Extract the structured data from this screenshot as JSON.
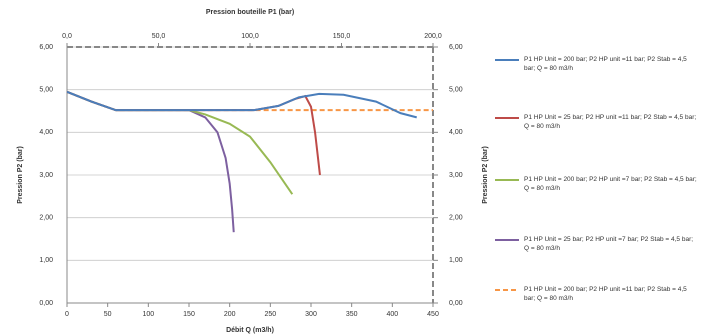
{
  "chart_data": {
    "type": "line",
    "xlabel": "Débit Q (m3/h)",
    "x2label": "Pression bouteille P1 (bar)",
    "ylabel": "Pression P2 (bar)",
    "y2label": "Pression P2 (bar)",
    "xlim": [
      0,
      450
    ],
    "xticks": [
      0,
      50,
      100,
      150,
      200,
      250,
      300,
      350,
      400,
      450
    ],
    "x2lim": [
      0,
      200
    ],
    "x2ticks": [
      {
        "value": 0,
        "label": "0,0"
      },
      {
        "value": 50,
        "label": "50,0"
      },
      {
        "value": 100,
        "label": "100,0"
      },
      {
        "value": 150,
        "label": "150,0"
      },
      {
        "value": 200,
        "label": "200,0"
      }
    ],
    "ylim": [
      0,
      6
    ],
    "yticks": [
      {
        "value": 0,
        "label": "0,00"
      },
      {
        "value": 1,
        "label": "1,00"
      },
      {
        "value": 2,
        "label": "2,00"
      },
      {
        "value": 3,
        "label": "3,00"
      },
      {
        "value": 4,
        "label": "4,00"
      },
      {
        "value": 5,
        "label": "5,00"
      },
      {
        "value": 6,
        "label": "6,00"
      }
    ],
    "y2lim": [
      0,
      6
    ],
    "y2ticks": [
      {
        "value": 0,
        "label": "0,00"
      },
      {
        "value": 1,
        "label": "1,00"
      },
      {
        "value": 2,
        "label": "2,00"
      },
      {
        "value": 3,
        "label": "3,00"
      },
      {
        "value": 4,
        "label": "4,00"
      },
      {
        "value": 5,
        "label": "5,00"
      },
      {
        "value": 6,
        "label": "6,00"
      }
    ],
    "grid": true,
    "series": [
      {
        "name": "P1 HP Unit = 200 bar; P2 HP unit =11 bar; P2 Stab = 4,5 bar; Q = 80 m3/h",
        "color": "#4a7ebb",
        "dashed": false,
        "x": [
          0,
          30,
          60,
          150,
          230,
          260,
          285,
          310,
          340,
          380,
          410,
          430
        ],
        "values": [
          4.95,
          4.72,
          4.52,
          4.52,
          4.52,
          4.62,
          4.82,
          4.9,
          4.88,
          4.72,
          4.45,
          4.35
        ]
      },
      {
        "name": "P1 HP Unit = 25 bar; P2 HP unit =11 bar; P2 Stab = 4,5 bar; Q = 80 m3/h",
        "color": "#be4b48",
        "dashed": false,
        "x": [
          0,
          30,
          60,
          150,
          230,
          260,
          280,
          293,
          300,
          305,
          308,
          311
        ],
        "values": [
          4.95,
          4.72,
          4.52,
          4.52,
          4.52,
          4.62,
          4.78,
          4.85,
          4.6,
          4.0,
          3.5,
          3.0
        ]
      },
      {
        "name": "P1 HP Unit = 200 bar; P2 HP unit =7 bar; P2 Stab = 4,5 bar; Q = 80 m3/h",
        "color": "#98b954",
        "dashed": false,
        "x": [
          0,
          30,
          60,
          150,
          170,
          200,
          225,
          250,
          277
        ],
        "values": [
          4.95,
          4.72,
          4.52,
          4.52,
          4.42,
          4.2,
          3.9,
          3.3,
          2.55
        ]
      },
      {
        "name": "P1 HP Unit = 25 bar; P2 HP unit =7 bar; P2 Stab = 4,5 bar; Q = 80 m3/h",
        "color": "#7d60a0",
        "dashed": false,
        "x": [
          0,
          30,
          60,
          150,
          170,
          185,
          195,
          200,
          203,
          205
        ],
        "values": [
          4.95,
          4.72,
          4.52,
          4.52,
          4.35,
          4.0,
          3.4,
          2.8,
          2.2,
          1.66
        ]
      },
      {
        "name": "P1 HP Unit = 200 bar; P2 HP unit =11 bar; P2 Stab = 4,5 bar; Q = 80 m3/h",
        "color": "#f79646",
        "dashed": true,
        "x": [
          0,
          30,
          60,
          450
        ],
        "values": [
          4.95,
          4.72,
          4.52,
          4.52
        ]
      }
    ]
  }
}
